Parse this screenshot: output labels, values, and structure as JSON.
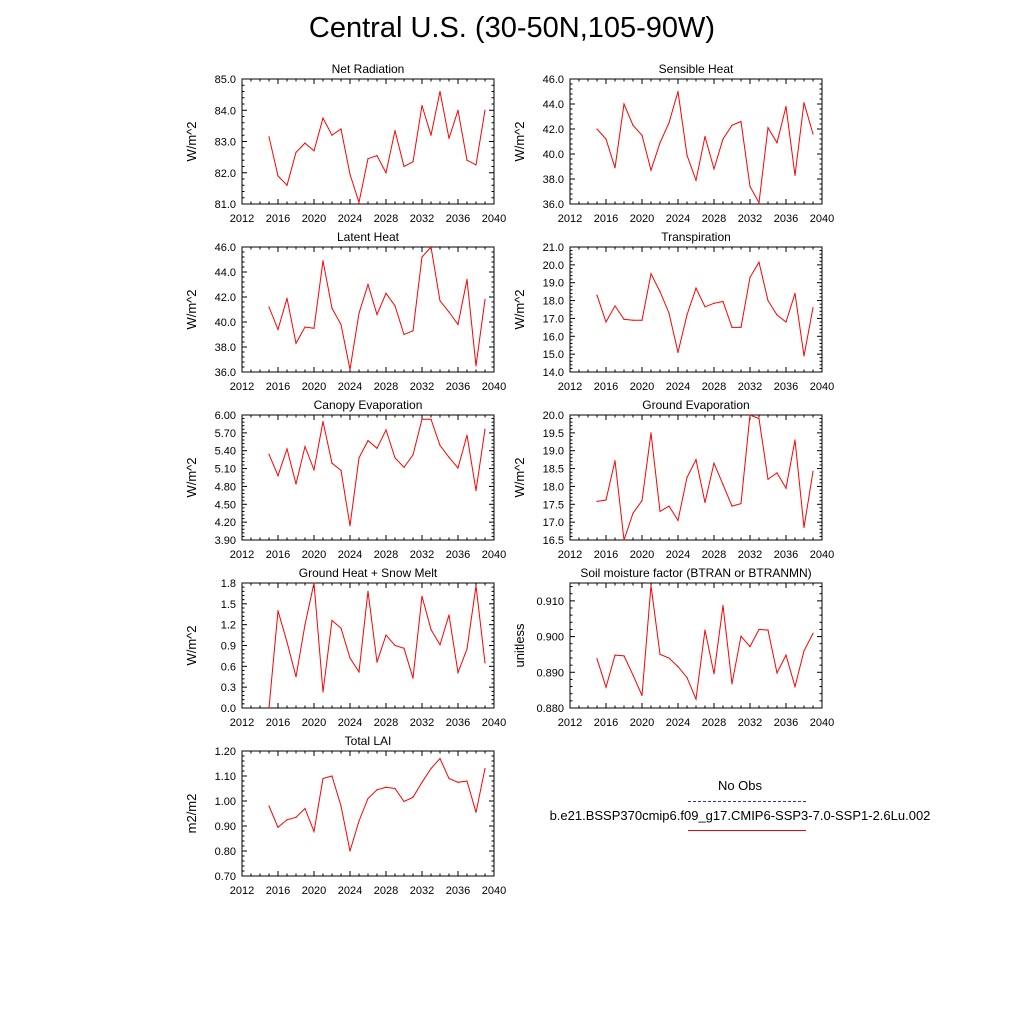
{
  "title": "Central U.S. (30-50N,105-90W)",
  "colors": {
    "model_line": "#ff0000",
    "obs_line": "#3333aa",
    "axis": "#000000"
  },
  "legend": {
    "entries": [
      {
        "label": "No Obs",
        "style": "dashed",
        "color": "#3333aa"
      },
      {
        "label": "b.e21.BSSP370cmip6.f09_g17.CMIP6-SSP3-7.0-SSP1-2.6Lu.002",
        "style": "solid",
        "color": "#ff0000"
      }
    ]
  },
  "chart_data": [
    {
      "type": "line",
      "title": "Net Radiation",
      "ylabel": "W/m^2",
      "xlim": [
        2012,
        2040
      ],
      "ylim": [
        81.0,
        85.0
      ],
      "xticks": [
        "2012",
        "2016",
        "2020",
        "2024",
        "2028",
        "2032",
        "2036",
        "2040"
      ],
      "yticks": [
        "81.0",
        "82.0",
        "83.0",
        "84.0",
        "85.0"
      ],
      "x": [
        2015,
        2016,
        2017,
        2018,
        2019,
        2020,
        2021,
        2022,
        2023,
        2024,
        2025,
        2026,
        2027,
        2028,
        2029,
        2030,
        2031,
        2032,
        2033,
        2034,
        2035,
        2036,
        2037,
        2038,
        2039
      ],
      "values": [
        83.15,
        81.9,
        81.6,
        82.65,
        82.95,
        82.7,
        83.75,
        83.2,
        83.4,
        81.95,
        81.05,
        82.45,
        82.55,
        82.0,
        83.35,
        82.2,
        82.35,
        84.15,
        83.2,
        84.6,
        83.1,
        84.0,
        82.4,
        82.25,
        84.0
      ]
    },
    {
      "type": "line",
      "title": "Sensible Heat",
      "ylabel": "W/m^2",
      "xlim": [
        2012,
        2040
      ],
      "ylim": [
        36.0,
        46.0
      ],
      "xticks": [
        "2012",
        "2016",
        "2020",
        "2024",
        "2028",
        "2032",
        "2036",
        "2040"
      ],
      "yticks": [
        "36.0",
        "38.0",
        "40.0",
        "42.0",
        "44.0",
        "46.0"
      ],
      "x": [
        2015,
        2016,
        2017,
        2018,
        2019,
        2020,
        2021,
        2022,
        2023,
        2024,
        2025,
        2026,
        2027,
        2028,
        2029,
        2030,
        2031,
        2032,
        2033,
        2034,
        2035,
        2036,
        2037,
        2038,
        2039
      ],
      "values": [
        42.0,
        41.2,
        38.9,
        44.0,
        42.3,
        41.5,
        38.7,
        40.9,
        42.5,
        45.0,
        39.9,
        37.9,
        41.4,
        38.8,
        41.2,
        42.3,
        42.6,
        37.4,
        36.1,
        42.1,
        40.9,
        43.8,
        38.3,
        44.1,
        41.6
      ]
    },
    {
      "type": "line",
      "title": "Latent Heat",
      "ylabel": "W/m^2",
      "xlim": [
        2012,
        2040
      ],
      "ylim": [
        36.0,
        46.0
      ],
      "xticks": [
        "2012",
        "2016",
        "2020",
        "2024",
        "2028",
        "2032",
        "2036",
        "2040"
      ],
      "yticks": [
        "36.0",
        "38.0",
        "40.0",
        "42.0",
        "44.0",
        "46.0"
      ],
      "x": [
        2015,
        2016,
        2017,
        2018,
        2019,
        2020,
        2021,
        2022,
        2023,
        2024,
        2025,
        2026,
        2027,
        2028,
        2029,
        2030,
        2031,
        2032,
        2033,
        2034,
        2035,
        2036,
        2037,
        2038,
        2039
      ],
      "values": [
        41.2,
        39.4,
        41.9,
        38.3,
        39.6,
        39.5,
        44.9,
        41.1,
        39.8,
        36.2,
        40.7,
        43.0,
        40.6,
        42.3,
        41.3,
        39.0,
        39.3,
        45.2,
        46.0,
        41.7,
        40.8,
        39.8,
        43.4,
        36.5,
        41.8
      ]
    },
    {
      "type": "line",
      "title": "Transpiration",
      "ylabel": "W/m^2",
      "xlim": [
        2012,
        2040
      ],
      "ylim": [
        14.0,
        21.0
      ],
      "xticks": [
        "2012",
        "2016",
        "2020",
        "2024",
        "2028",
        "2032",
        "2036",
        "2040"
      ],
      "yticks": [
        "14.0",
        "15.0",
        "16.0",
        "17.0",
        "18.0",
        "19.0",
        "20.0",
        "21.0"
      ],
      "x": [
        2015,
        2016,
        2017,
        2018,
        2019,
        2020,
        2021,
        2022,
        2023,
        2024,
        2025,
        2026,
        2027,
        2028,
        2029,
        2030,
        2031,
        2032,
        2033,
        2034,
        2035,
        2036,
        2037,
        2038,
        2039
      ],
      "values": [
        18.3,
        16.8,
        17.7,
        16.95,
        16.9,
        16.9,
        19.5,
        18.5,
        17.3,
        15.1,
        17.2,
        18.7,
        17.65,
        17.85,
        17.95,
        16.5,
        16.5,
        19.3,
        20.15,
        18.0,
        17.2,
        16.8,
        18.4,
        14.9,
        17.6
      ]
    },
    {
      "type": "line",
      "title": "Canopy Evaporation",
      "ylabel": "W/m^2",
      "xlim": [
        2012,
        2040
      ],
      "ylim": [
        3.9,
        6.0
      ],
      "xticks": [
        "2012",
        "2016",
        "2020",
        "2024",
        "2028",
        "2032",
        "2036",
        "2040"
      ],
      "yticks": [
        "3.90",
        "4.20",
        "4.50",
        "4.80",
        "5.10",
        "5.40",
        "5.70",
        "6.00"
      ],
      "x": [
        2015,
        2016,
        2017,
        2018,
        2019,
        2020,
        2021,
        2022,
        2023,
        2024,
        2025,
        2026,
        2027,
        2028,
        2029,
        2030,
        2031,
        2032,
        2033,
        2034,
        2035,
        2036,
        2037,
        2038,
        2039
      ],
      "values": [
        5.34,
        4.98,
        5.43,
        4.84,
        5.47,
        5.08,
        5.89,
        5.19,
        5.07,
        4.14,
        5.28,
        5.57,
        5.44,
        5.75,
        5.28,
        5.12,
        5.33,
        5.93,
        5.93,
        5.49,
        5.29,
        5.11,
        5.66,
        4.73,
        5.76
      ]
    },
    {
      "type": "line",
      "title": "Ground Evaporation",
      "ylabel": "W/m^2",
      "xlim": [
        2012,
        2040
      ],
      "ylim": [
        16.5,
        20.0
      ],
      "xticks": [
        "2012",
        "2016",
        "2020",
        "2024",
        "2028",
        "2032",
        "2036",
        "2040"
      ],
      "yticks": [
        "16.5",
        "17.0",
        "17.5",
        "18.0",
        "18.5",
        "19.0",
        "19.5",
        "20.0"
      ],
      "x": [
        2015,
        2016,
        2017,
        2018,
        2019,
        2020,
        2021,
        2022,
        2023,
        2024,
        2025,
        2026,
        2027,
        2028,
        2029,
        2030,
        2031,
        2032,
        2033,
        2034,
        2035,
        2036,
        2037,
        2038,
        2039
      ],
      "values": [
        17.58,
        17.62,
        18.72,
        16.5,
        17.25,
        17.6,
        19.5,
        17.3,
        17.45,
        17.05,
        18.25,
        18.75,
        17.55,
        18.65,
        18.05,
        17.45,
        17.52,
        20.0,
        19.9,
        18.2,
        18.38,
        17.95,
        19.3,
        16.85,
        18.42
      ]
    },
    {
      "type": "line",
      "title": "Ground Heat + Snow Melt",
      "ylabel": "W/m^2",
      "xlim": [
        2012,
        2040
      ],
      "ylim": [
        0.0,
        1.8
      ],
      "xticks": [
        "2012",
        "2016",
        "2020",
        "2024",
        "2028",
        "2032",
        "2036",
        "2040"
      ],
      "yticks": [
        "0.0",
        "0.3",
        "0.6",
        "0.9",
        "1.2",
        "1.5",
        "1.8"
      ],
      "x": [
        2015,
        2016,
        2017,
        2018,
        2019,
        2020,
        2021,
        2022,
        2023,
        2024,
        2025,
        2026,
        2027,
        2028,
        2029,
        2030,
        2031,
        2032,
        2033,
        2034,
        2035,
        2036,
        2037,
        2038,
        2039
      ],
      "values": [
        0.0,
        1.4,
        0.95,
        0.45,
        1.2,
        1.8,
        0.23,
        1.26,
        1.15,
        0.72,
        0.52,
        1.68,
        0.66,
        1.05,
        0.9,
        0.86,
        0.43,
        1.61,
        1.13,
        0.91,
        1.34,
        0.51,
        0.85,
        1.76,
        0.65
      ]
    },
    {
      "type": "line",
      "title": "Soil moisture factor (BTRAN or BTRANMN)",
      "ylabel": "unitless",
      "xlim": [
        2012,
        2040
      ],
      "ylim": [
        0.88,
        0.915
      ],
      "xticks": [
        "2012",
        "2016",
        "2020",
        "2024",
        "2028",
        "2032",
        "2036",
        "2040"
      ],
      "yticks": [
        "0.880",
        "0.890",
        "0.900",
        "0.910"
      ],
      "x": [
        2015,
        2016,
        2017,
        2018,
        2019,
        2020,
        2021,
        2022,
        2023,
        2024,
        2025,
        2026,
        2027,
        2028,
        2029,
        2030,
        2031,
        2032,
        2033,
        2034,
        2035,
        2036,
        2037,
        2038,
        2039
      ],
      "values": [
        0.8938,
        0.8858,
        0.8948,
        0.8946,
        0.8892,
        0.8835,
        0.9143,
        0.895,
        0.894,
        0.8916,
        0.8885,
        0.8825,
        0.9018,
        0.8896,
        0.9087,
        0.8868,
        0.9001,
        0.8972,
        0.902,
        0.9018,
        0.8898,
        0.8948,
        0.886,
        0.896,
        0.9009
      ]
    },
    {
      "type": "line",
      "title": "Total LAI",
      "ylabel": "m2/m2",
      "xlim": [
        2012,
        2040
      ],
      "ylim": [
        0.7,
        1.2
      ],
      "xticks": [
        "2012",
        "2016",
        "2020",
        "2024",
        "2028",
        "2032",
        "2036",
        "2040"
      ],
      "yticks": [
        "0.70",
        "0.80",
        "0.90",
        "1.00",
        "1.10",
        "1.20"
      ],
      "x": [
        2015,
        2016,
        2017,
        2018,
        2019,
        2020,
        2021,
        2022,
        2023,
        2024,
        2025,
        2026,
        2027,
        2028,
        2029,
        2030,
        2031,
        2032,
        2033,
        2034,
        2035,
        2036,
        2037,
        2038,
        2039
      ],
      "values": [
        0.98,
        0.895,
        0.925,
        0.935,
        0.97,
        0.878,
        1.09,
        1.1,
        0.98,
        0.8,
        0.92,
        1.01,
        1.045,
        1.055,
        1.05,
        0.998,
        1.015,
        1.075,
        1.13,
        1.17,
        1.09,
        1.075,
        1.08,
        0.955,
        1.13
      ]
    }
  ]
}
